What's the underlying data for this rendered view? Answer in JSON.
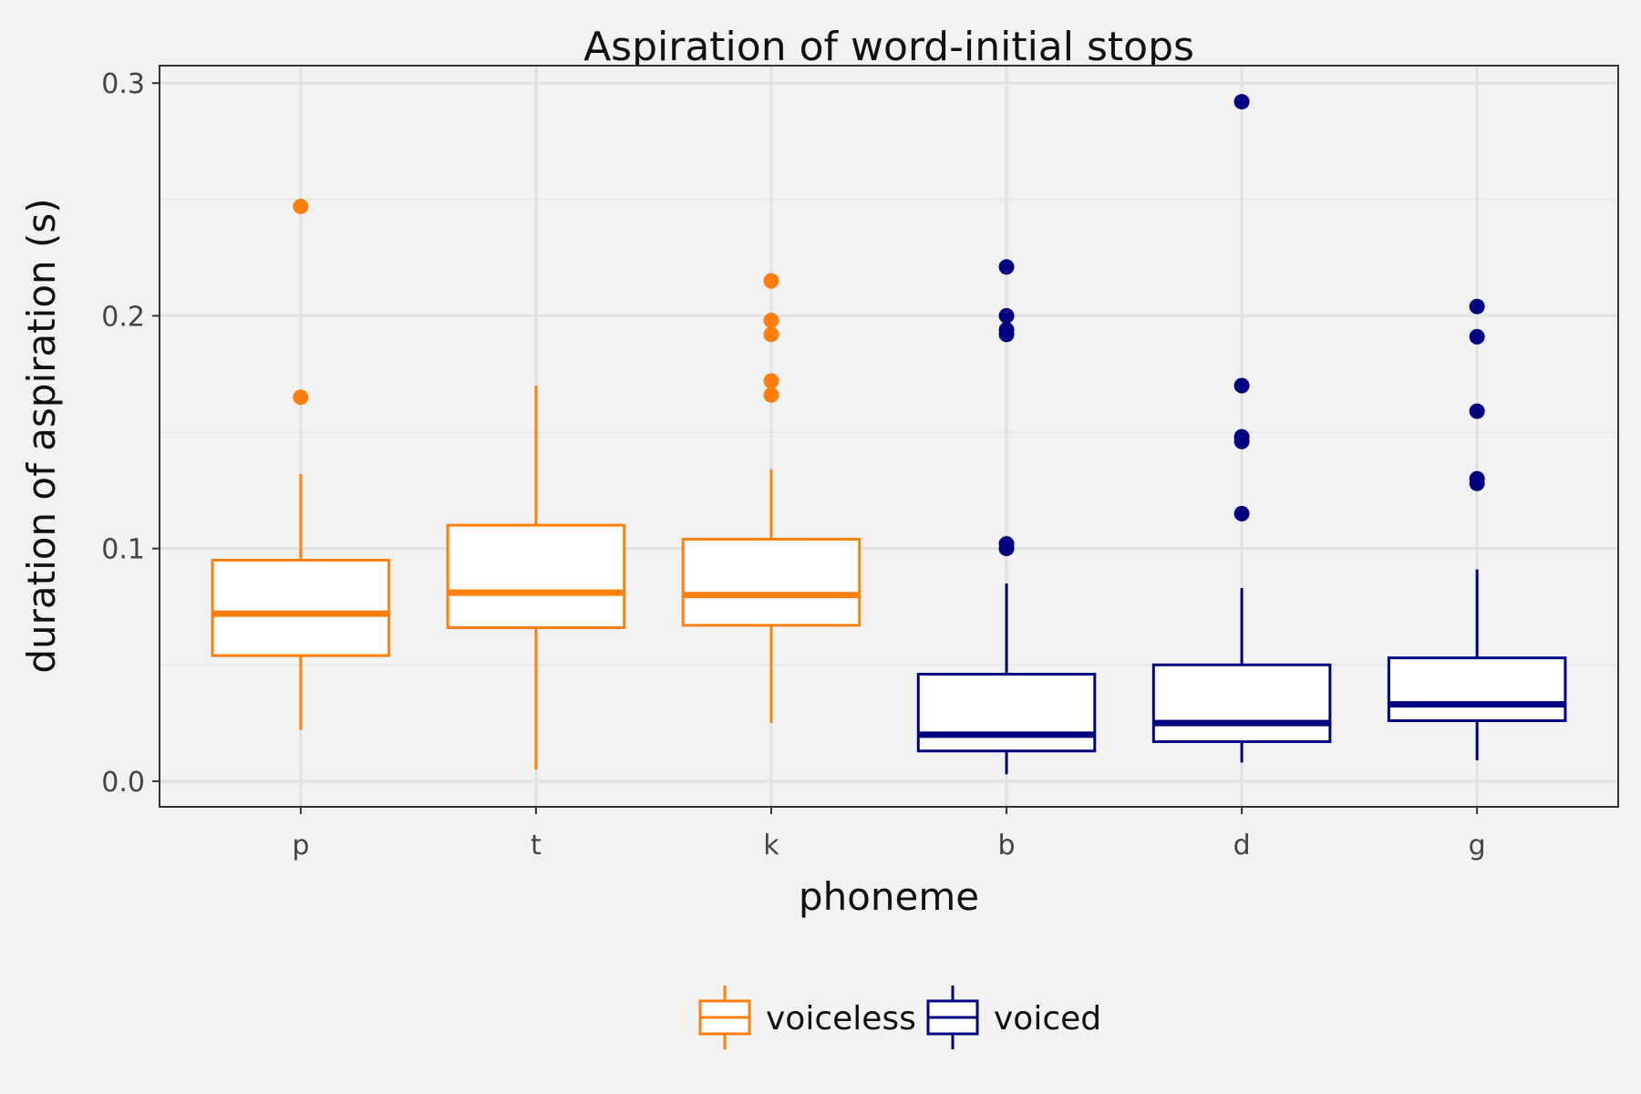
{
  "chart_data": {
    "type": "boxplot",
    "title": "Aspiration of word-initial stops",
    "xlabel": "phoneme",
    "ylabel": "duration of aspiration (s)",
    "ylim": [
      -0.011,
      0.3075
    ],
    "yticks": [
      0.0,
      0.1,
      0.2,
      0.3
    ],
    "ytick_labels": [
      "0.0",
      "0.1",
      "0.2",
      "0.3"
    ],
    "grid": true,
    "legend_position": "bottom",
    "legend": [
      {
        "label": "voiceless",
        "color": "#ff7f0e"
      },
      {
        "label": "voiced",
        "color": "#000080"
      }
    ],
    "categories": [
      {
        "name": "p",
        "group": "voiceless",
        "color": "#ff7f0e",
        "whisker_low": 0.022,
        "q1": 0.054,
        "median": 0.072,
        "q3": 0.095,
        "whisker_high": 0.132,
        "outliers": [
          0.165,
          0.247
        ]
      },
      {
        "name": "t",
        "group": "voiceless",
        "color": "#ff7f0e",
        "whisker_low": 0.005,
        "q1": 0.066,
        "median": 0.081,
        "q3": 0.11,
        "whisker_high": 0.17,
        "outliers": []
      },
      {
        "name": "k",
        "group": "voiceless",
        "color": "#ff7f0e",
        "whisker_low": 0.025,
        "q1": 0.067,
        "median": 0.08,
        "q3": 0.104,
        "whisker_high": 0.134,
        "outliers": [
          0.166,
          0.172,
          0.192,
          0.198,
          0.215
        ]
      },
      {
        "name": "b",
        "group": "voiced",
        "color": "#000080",
        "whisker_low": 0.003,
        "q1": 0.013,
        "median": 0.02,
        "q3": 0.046,
        "whisker_high": 0.085,
        "outliers": [
          0.1,
          0.102,
          0.192,
          0.194,
          0.2,
          0.221
        ]
      },
      {
        "name": "d",
        "group": "voiced",
        "color": "#000080",
        "whisker_low": 0.008,
        "q1": 0.017,
        "median": 0.025,
        "q3": 0.05,
        "whisker_high": 0.083,
        "outliers": [
          0.115,
          0.146,
          0.148,
          0.17,
          0.292
        ]
      },
      {
        "name": "g",
        "group": "voiced",
        "color": "#000080",
        "whisker_low": 0.009,
        "q1": 0.026,
        "median": 0.033,
        "q3": 0.053,
        "whisker_high": 0.091,
        "outliers": [
          0.128,
          0.13,
          0.159,
          0.191,
          0.204
        ]
      }
    ]
  }
}
